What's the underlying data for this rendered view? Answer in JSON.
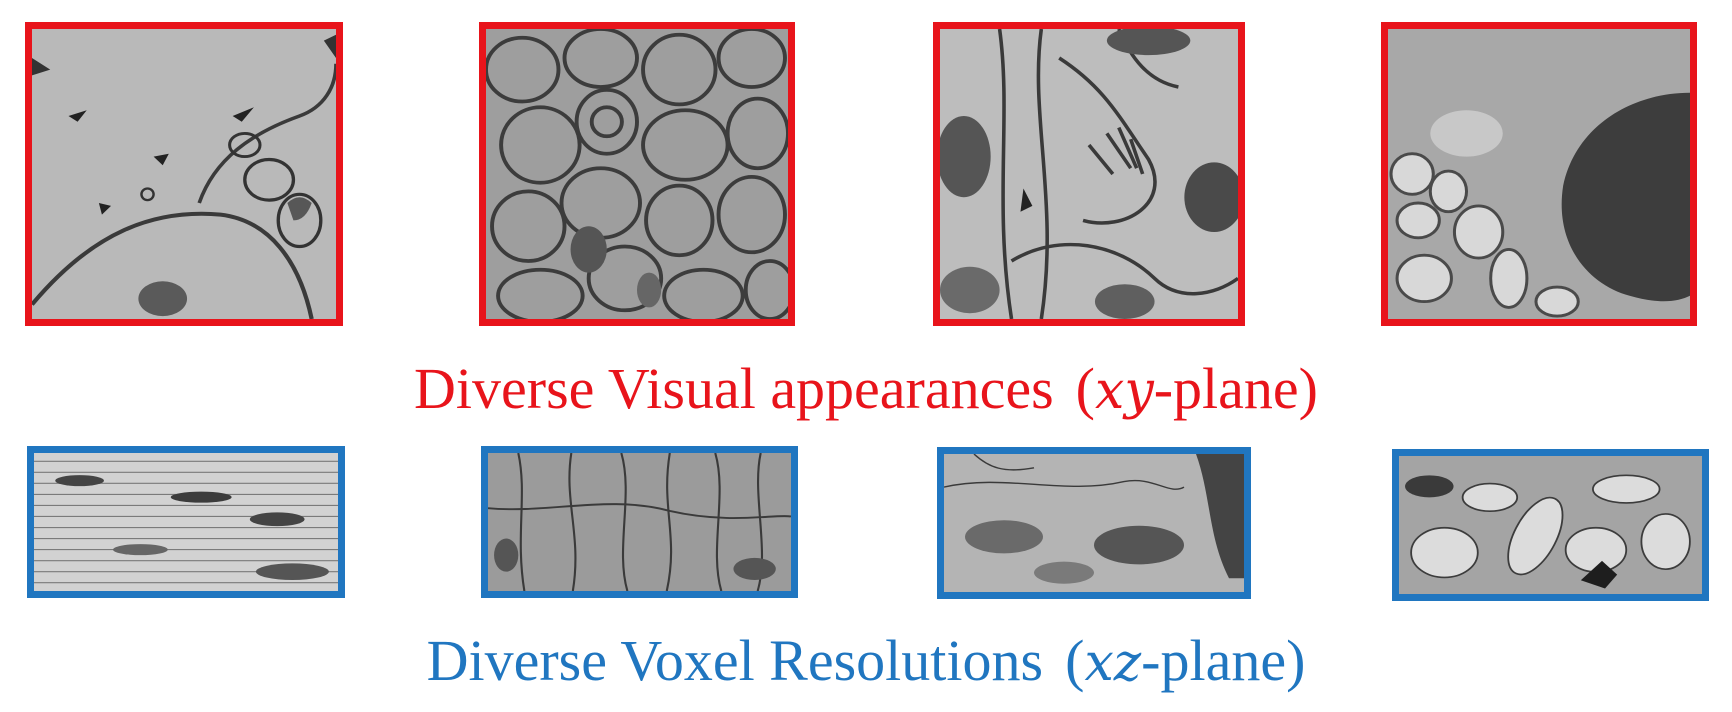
{
  "colors": {
    "xy_accent": "#e8141b",
    "xz_accent": "#2076c0"
  },
  "captions": {
    "xy": {
      "main": "Diverse Visual appearances",
      "axes": "xy",
      "suffix": "-plane)",
      "open": "("
    },
    "xz": {
      "main": "Diverse Voxel Resolutions",
      "axes": "xz",
      "suffix": "-plane)",
      "open": "("
    }
  },
  "panels": {
    "xy": [
      {
        "tone": "#b9b9b9"
      },
      {
        "tone": "#9e9e9e"
      },
      {
        "tone": "#bdbdbd"
      },
      {
        "tone": "#a8a8a8"
      }
    ],
    "xz": [
      {
        "tone": "#d2d2d2"
      },
      {
        "tone": "#9b9b9b"
      },
      {
        "tone": "#b4b4b4"
      },
      {
        "tone": "#a4a4a4"
      }
    ]
  }
}
